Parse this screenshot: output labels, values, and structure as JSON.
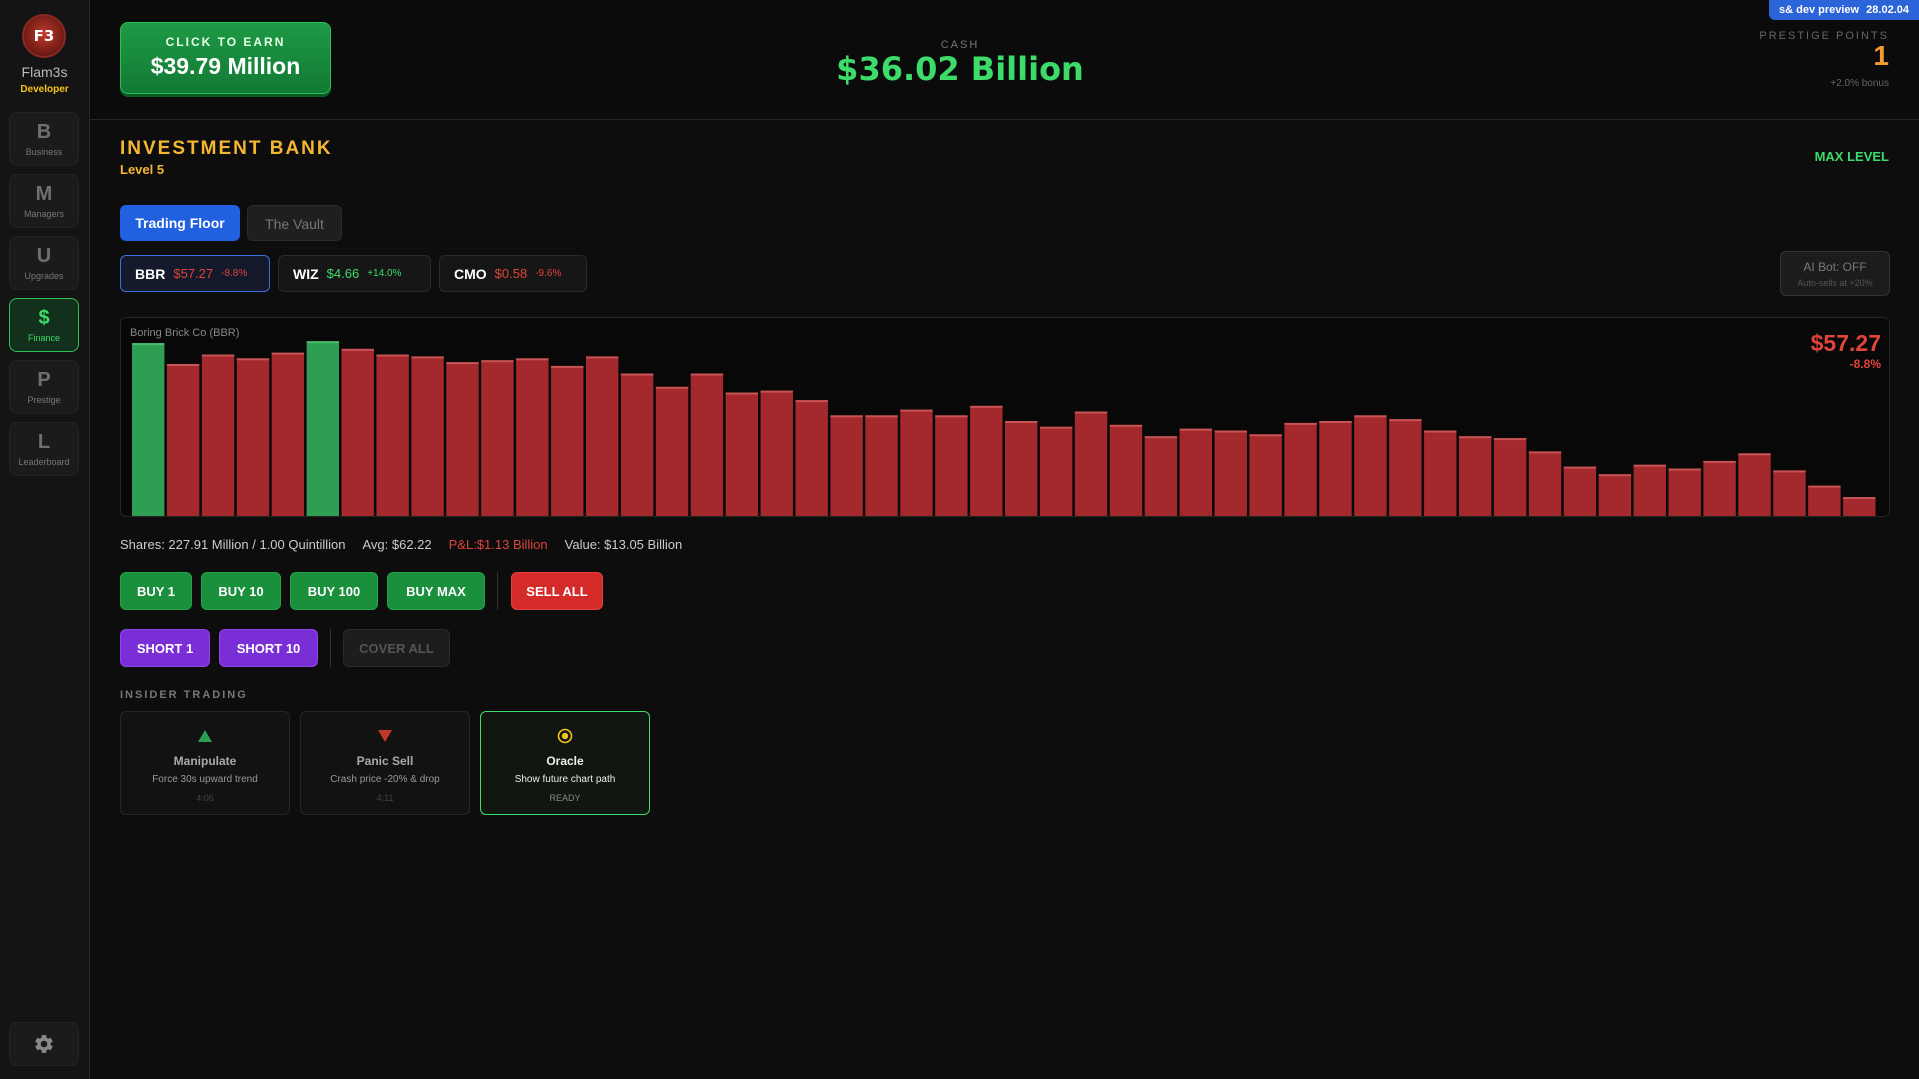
{
  "user": {
    "avatar_initials": "F3",
    "name": "Flam3s",
    "role": "Developer"
  },
  "nav": [
    {
      "letter": "B",
      "label": "Business"
    },
    {
      "letter": "M",
      "label": "Managers"
    },
    {
      "letter": "U",
      "label": "Upgrades"
    },
    {
      "letter": "$",
      "label": "Finance",
      "active": true
    },
    {
      "letter": "P",
      "label": "Prestige"
    },
    {
      "letter": "L",
      "label": "Leaderboard"
    }
  ],
  "header": {
    "earn_label": "CLICK TO EARN",
    "earn_value": "$39.79 Million",
    "cash_label": "CASH",
    "cash_value": "$36.02 Billion",
    "dev_badge": "s& dev preview",
    "dev_date": "28.02.04",
    "prestige_label": "PRESTIGE POINTS",
    "prestige_value": "1",
    "prestige_bonus": "+2.0% bonus"
  },
  "bank": {
    "title": "INVESTMENT BANK",
    "level": "Level 5",
    "max_level": "MAX LEVEL"
  },
  "tabs": [
    {
      "label": "Trading Floor",
      "active": true
    },
    {
      "label": "The Vault"
    }
  ],
  "tickers": [
    {
      "symbol": "BBR",
      "price": "$57.27",
      "change": "-8.8%",
      "direction": "down",
      "active": true
    },
    {
      "symbol": "WIZ",
      "price": "$4.66",
      "change": "+14.0%",
      "direction": "up"
    },
    {
      "symbol": "CMO",
      "price": "$0.58",
      "change": "-9.6%",
      "direction": "down"
    }
  ],
  "ai_bot": {
    "label": "AI Bot: OFF",
    "sub": "Auto-sells at +20%"
  },
  "chart_data": {
    "type": "bar",
    "title": "Boring Brick Co (BBR)",
    "price": "$57.27",
    "change": "-8.8%",
    "colors": {
      "up": "#2e9e52",
      "down": "#a3292c"
    },
    "values": [
      91,
      80,
      85,
      83,
      86,
      92,
      88,
      85,
      84,
      81,
      82,
      83,
      79,
      84,
      75,
      68,
      75,
      65,
      66,
      61,
      53,
      53,
      56,
      53,
      58,
      50,
      47,
      55,
      48,
      42,
      46,
      45,
      43,
      49,
      50,
      53,
      51,
      45,
      42,
      41,
      34,
      26,
      22,
      27,
      25,
      29,
      33,
      24,
      16,
      10
    ],
    "up_indices": [
      0,
      5
    ],
    "ylim": [
      0,
      100
    ]
  },
  "stats": {
    "shares": "Shares: 227.91 Million / 1.00 Quintillion",
    "avg": "Avg: $62.22",
    "pnl": "P&L:$1.13 Billion",
    "value": "Value: $13.05 Billion"
  },
  "buy_buttons": [
    "BUY 1",
    "BUY 10",
    "BUY 100",
    "BUY MAX"
  ],
  "sell_all": "SELL ALL",
  "short_buttons": [
    "SHORT 1",
    "SHORT 10"
  ],
  "cover_all": "COVER ALL",
  "insider": {
    "label": "INSIDER TRADING",
    "cards": [
      {
        "icon": "triangle-up-icon",
        "title": "Manipulate",
        "desc": "Force 30s upward trend",
        "status": "4:06"
      },
      {
        "icon": "triangle-down-icon",
        "title": "Panic Sell",
        "desc": "Crash price -20% & drop",
        "status": "4:11"
      },
      {
        "icon": "target-icon",
        "title": "Oracle",
        "desc": "Show future chart path",
        "status": "READY",
        "active": true
      }
    ]
  }
}
